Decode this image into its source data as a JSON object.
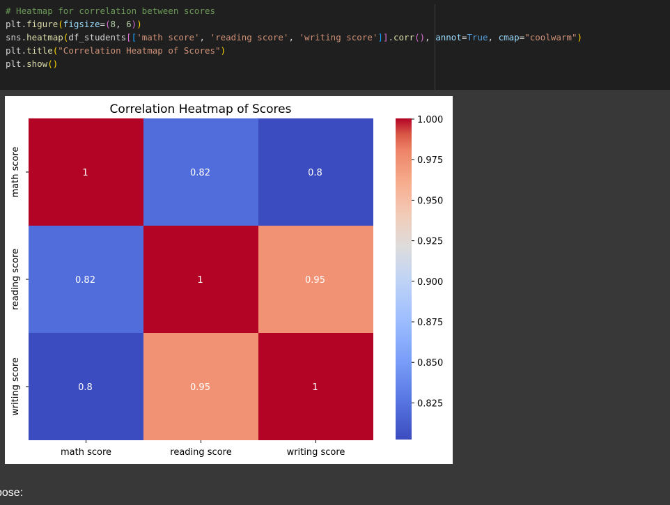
{
  "code": {
    "lines": [
      [
        [
          "t-comment",
          "# Heatmap for correlation between scores"
        ]
      ],
      [
        [
          "",
          "plt."
        ],
        [
          "t-fn",
          "figure"
        ],
        [
          "t-p1",
          "("
        ],
        [
          "t-var",
          "figsize"
        ],
        [
          "",
          "="
        ],
        [
          "t-p2",
          "("
        ],
        [
          "t-num",
          "8"
        ],
        [
          "",
          ", "
        ],
        [
          "t-num",
          "6"
        ],
        [
          "t-p2",
          ")"
        ],
        [
          "t-p1",
          ")"
        ]
      ],
      [
        [
          "",
          "sns."
        ],
        [
          "t-fn",
          "heatmap"
        ],
        [
          "t-p1",
          "("
        ],
        [
          "",
          "df_students"
        ],
        [
          "t-p2",
          "["
        ],
        [
          "t-p3",
          "["
        ],
        [
          "t-str",
          "'math score'"
        ],
        [
          "",
          ", "
        ],
        [
          "t-str",
          "'reading score'"
        ],
        [
          "",
          ", "
        ],
        [
          "t-str",
          "'writing score'"
        ],
        [
          "t-p3",
          "]"
        ],
        [
          "t-p2",
          "]"
        ],
        [
          "",
          "."
        ],
        [
          "t-fn",
          "corr"
        ],
        [
          "t-p2",
          "()"
        ],
        [
          "",
          ", "
        ],
        [
          "t-var",
          "annot"
        ],
        [
          "",
          "="
        ],
        [
          "t-kw",
          "True"
        ],
        [
          "",
          ", "
        ],
        [
          "t-var",
          "cmap"
        ],
        [
          "",
          "="
        ],
        [
          "t-str",
          "\"coolwarm\""
        ],
        [
          "t-p1",
          ")"
        ]
      ],
      [
        [
          "",
          "plt."
        ],
        [
          "t-fn",
          "title"
        ],
        [
          "t-p1",
          "("
        ],
        [
          "t-str",
          "\"Correlation Heatmap of Scores\""
        ],
        [
          "t-p1",
          ")"
        ]
      ],
      [
        [
          "",
          "plt."
        ],
        [
          "t-fn",
          "show"
        ],
        [
          "t-p1",
          "()"
        ]
      ]
    ]
  },
  "output_trailing_text": "pose:",
  "chart_data": {
    "type": "heatmap",
    "title": "Correlation Heatmap of Scores",
    "rows": [
      "math score",
      "reading score",
      "writing score"
    ],
    "columns": [
      "math score",
      "reading score",
      "writing score"
    ],
    "values": [
      [
        1,
        0.82,
        0.8
      ],
      [
        0.82,
        1,
        0.95
      ],
      [
        0.8,
        0.95,
        1
      ]
    ],
    "annotations": [
      [
        "1",
        "0.82",
        "0.8"
      ],
      [
        "0.82",
        "1",
        "0.95"
      ],
      [
        "0.8",
        "0.95",
        "1"
      ]
    ],
    "colormap": "coolwarm",
    "vmin": 0.8,
    "vmax": 1.0,
    "colorbar_ticks": [
      "1.000",
      "0.975",
      "0.950",
      "0.925",
      "0.900",
      "0.875",
      "0.850",
      "0.825"
    ],
    "colorbar_tick_values": [
      1.0,
      0.975,
      0.95,
      0.925,
      0.9,
      0.875,
      0.85,
      0.825
    ],
    "cell_colors": {
      "1": "#b40426",
      "0.82": "#516ddb",
      "0.8": "#3b4cc0",
      "0.95": "#f29274"
    }
  }
}
